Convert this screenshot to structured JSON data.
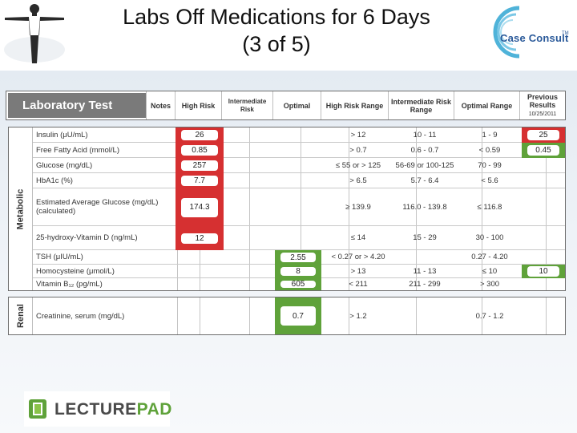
{
  "slide": {
    "title_line1": "Labs Off Medications for 6 Days",
    "title_line2": "(3 of 5)"
  },
  "brand": {
    "case_consult": "Case Consult",
    "tm": "TM",
    "lecturepad_part1": "LECTURE",
    "lecturepad_part2": "PAD"
  },
  "header": {
    "lab_test": "Laboratory Test",
    "notes": "Notes",
    "high_risk": "High Risk",
    "intermediate_risk": "Intermediate Risk",
    "optimal": "Optimal",
    "high_risk_range": "High Risk Range",
    "intermediate_risk_range": "Intermediate Risk Range",
    "optimal_range": "Optimal Range",
    "previous_results": "Previous Results",
    "previous_date": "10/25/2011"
  },
  "sections": {
    "metabolic": "Metabolic",
    "renal": "Renal"
  },
  "metabolic_rows": [
    {
      "test": "Insulin (μU/mL)",
      "value": "26",
      "status": "high",
      "high_range": "> 12",
      "int_range": "10 - 11",
      "opt_range": "1 - 9",
      "previous": "25",
      "prev_status": "high"
    },
    {
      "test": "Free Fatty Acid (mmol/L)",
      "value": "0.85",
      "status": "high",
      "high_range": "> 0.7",
      "int_range": "0.6 - 0.7",
      "opt_range": "< 0.59",
      "previous": "0.45",
      "prev_status": "optimal"
    },
    {
      "test": "Glucose (mg/dL)",
      "value": "257",
      "status": "high",
      "high_range": "≤ 55 or > 125",
      "int_range": "56-69 or 100-125",
      "opt_range": "70 - 99",
      "previous": "",
      "prev_status": "none"
    },
    {
      "test": "HbA1c (%)",
      "value": "7.7",
      "status": "high",
      "high_range": "> 6.5",
      "int_range": "5.7 - 6.4",
      "opt_range": "< 5.6",
      "previous": "",
      "prev_status": "none"
    },
    {
      "test": "Estimated Average Glucose (mg/dL) (calculated)",
      "value": "174.3",
      "status": "high",
      "high_range": "≥ 139.9",
      "int_range": "116.0 - 139.8",
      "opt_range": "≤ 116.8",
      "previous": "",
      "prev_status": "none"
    },
    {
      "test": "25-hydroxy-Vitamin D (ng/mL)",
      "value": "12",
      "status": "high",
      "high_range": "≤ 14",
      "int_range": "15 - 29",
      "opt_range": "30 - 100",
      "previous": "",
      "prev_status": "none"
    },
    {
      "test": "TSH (μIU/mL)",
      "value": "2.55",
      "status": "optimal",
      "high_range": "< 0.27 or > 4.20",
      "int_range": "",
      "opt_range": "0.27 - 4.20",
      "previous": "",
      "prev_status": "none"
    },
    {
      "test": "Homocysteine (μmol/L)",
      "value": "8",
      "status": "optimal",
      "high_range": "> 13",
      "int_range": "11 - 13",
      "opt_range": "≤ 10",
      "previous": "10",
      "prev_status": "optimal"
    },
    {
      "test": "Vitamin B₁₂ (pg/mL)",
      "value": "605",
      "status": "optimal",
      "high_range": "< 211",
      "int_range": "211 - 299",
      "opt_range": "> 300",
      "previous": "",
      "prev_status": "none"
    }
  ],
  "renal_rows": [
    {
      "test": "Creatinine, serum (mg/dL)",
      "value": "0.7",
      "status": "optimal",
      "high_range": "> 1.2",
      "int_range": "",
      "opt_range": "0.7 - 1.2",
      "previous": "",
      "prev_status": "none"
    }
  ],
  "colors": {
    "high": "#d63031",
    "optimal": "#5fa23a",
    "header_dark": "#7a7a7a"
  }
}
